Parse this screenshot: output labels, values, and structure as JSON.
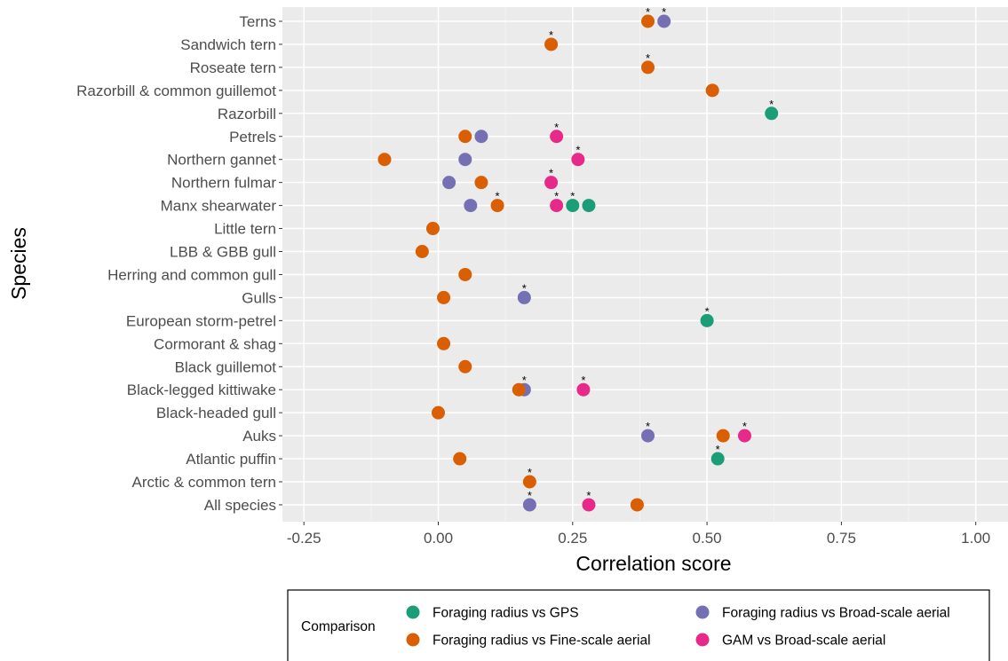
{
  "chart_data": {
    "type": "scatter",
    "xlabel": "Correlation score",
    "ylabel": "Species",
    "xlim": [
      -0.29,
      1.06
    ],
    "x_ticks": [
      -0.25,
      0.0,
      0.25,
      0.5,
      0.75,
      1.0
    ],
    "x_tick_labels": [
      "-0.25",
      "0.00",
      "0.25",
      "0.50",
      "0.75",
      "1.00"
    ],
    "grid": true,
    "legend_position": "bottom",
    "categories": [
      "Terns",
      "Sandwich tern",
      "Roseate tern",
      "Razorbill & common guillemot",
      "Razorbill",
      "Petrels",
      "Northern gannet",
      "Northern fulmar",
      "Manx shearwater",
      "Little tern",
      "LBB & GBB gull",
      "Herring and common gull",
      "Gulls",
      "European storm-petrel",
      "Cormorant & shag",
      "Black guillemot",
      "Black-legged kittiwake",
      "Black-headed gull",
      "Auks",
      "Atlantic puffin",
      "Arctic & common tern",
      "All species"
    ],
    "legend": {
      "title": "Comparison",
      "entries": [
        {
          "label": "Foraging radius vs GPS",
          "color": "#1b9e77"
        },
        {
          "label": "Foraging radius vs Broad-scale aerial",
          "color": "#7570b3"
        },
        {
          "label": "Foraging radius vs Fine-scale aerial",
          "color": "#d95f02"
        },
        {
          "label": "GAM vs Broad-scale aerial",
          "color": "#e7298a"
        }
      ]
    },
    "series": [
      {
        "name": "Foraging radius vs GPS",
        "color": "#1b9e77",
        "points": [
          {
            "species": "Razorbill",
            "x": 0.62,
            "significant": true
          },
          {
            "species": "Manx shearwater",
            "x": 0.25,
            "significant": true
          },
          {
            "species": "Manx shearwater",
            "x": 0.28,
            "significant": false
          },
          {
            "species": "European storm-petrel",
            "x": 0.5,
            "significant": true
          },
          {
            "species": "Atlantic puffin",
            "x": 0.52,
            "significant": true
          }
        ]
      },
      {
        "name": "Foraging radius vs Broad-scale aerial",
        "color": "#7570b3",
        "points": [
          {
            "species": "Terns",
            "x": 0.42,
            "significant": true
          },
          {
            "species": "Petrels",
            "x": 0.08,
            "significant": false
          },
          {
            "species": "Northern gannet",
            "x": 0.05,
            "significant": false
          },
          {
            "species": "Northern fulmar",
            "x": 0.02,
            "significant": false
          },
          {
            "species": "Manx shearwater",
            "x": 0.06,
            "significant": false
          },
          {
            "species": "Gulls",
            "x": 0.16,
            "significant": true
          },
          {
            "species": "Black-legged kittiwake",
            "x": 0.16,
            "significant": true
          },
          {
            "species": "Auks",
            "x": 0.39,
            "significant": true
          },
          {
            "species": "All species",
            "x": 0.17,
            "significant": true
          }
        ]
      },
      {
        "name": "Foraging radius vs Fine-scale aerial",
        "color": "#d95f02",
        "points": [
          {
            "species": "Terns",
            "x": 0.39,
            "significant": true
          },
          {
            "species": "Sandwich tern",
            "x": 0.21,
            "significant": true
          },
          {
            "species": "Roseate tern",
            "x": 0.39,
            "significant": true
          },
          {
            "species": "Razorbill & common guillemot",
            "x": 0.51,
            "significant": false
          },
          {
            "species": "Petrels",
            "x": 0.05,
            "significant": false
          },
          {
            "species": "Northern gannet",
            "x": -0.1,
            "significant": false
          },
          {
            "species": "Northern fulmar",
            "x": 0.08,
            "significant": false
          },
          {
            "species": "Manx shearwater",
            "x": 0.11,
            "significant": true
          },
          {
            "species": "Little tern",
            "x": -0.01,
            "significant": false
          },
          {
            "species": "LBB & GBB gull",
            "x": -0.03,
            "significant": false
          },
          {
            "species": "Herring and common gull",
            "x": 0.05,
            "significant": false
          },
          {
            "species": "Gulls",
            "x": 0.01,
            "significant": false
          },
          {
            "species": "Cormorant & shag",
            "x": 0.01,
            "significant": false
          },
          {
            "species": "Black guillemot",
            "x": 0.05,
            "significant": false
          },
          {
            "species": "Black-legged kittiwake",
            "x": 0.15,
            "significant": false
          },
          {
            "species": "Black-headed gull",
            "x": 0.0,
            "significant": false
          },
          {
            "species": "Auks",
            "x": 0.53,
            "significant": false
          },
          {
            "species": "Atlantic puffin",
            "x": 0.04,
            "significant": false
          },
          {
            "species": "Arctic & common tern",
            "x": 0.17,
            "significant": true
          },
          {
            "species": "All species",
            "x": 0.37,
            "significant": false
          }
        ]
      },
      {
        "name": "GAM vs Broad-scale aerial",
        "color": "#e7298a",
        "points": [
          {
            "species": "Petrels",
            "x": 0.22,
            "significant": true
          },
          {
            "species": "Northern gannet",
            "x": 0.26,
            "significant": true
          },
          {
            "species": "Northern fulmar",
            "x": 0.21,
            "significant": true
          },
          {
            "species": "Manx shearwater",
            "x": 0.22,
            "significant": true
          },
          {
            "species": "Black-legged kittiwake",
            "x": 0.27,
            "significant": true
          },
          {
            "species": "Auks",
            "x": 0.57,
            "significant": true
          },
          {
            "species": "All species",
            "x": 0.28,
            "significant": true
          }
        ]
      }
    ],
    "significance_marker": "*"
  }
}
